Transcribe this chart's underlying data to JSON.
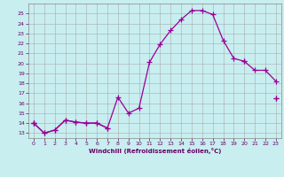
{
  "xlabel": "Windchill (Refroidissement éolien,°C)",
  "background_color": "#c8eef0",
  "grid_color": "#aaaaaa",
  "line_color": "#990099",
  "x_data": [
    0,
    1,
    2,
    3,
    4,
    5,
    6,
    7,
    8,
    9,
    10,
    11,
    12,
    13,
    14,
    15,
    16,
    17,
    18,
    19,
    20,
    21,
    22,
    23
  ],
  "curve_main": [
    14.0,
    13.0,
    13.3,
    14.3,
    14.1,
    14.0,
    14.0,
    13.5,
    16.6,
    15.0,
    15.5,
    20.1,
    21.9,
    23.3,
    24.4,
    25.3,
    25.3,
    24.9,
    22.3,
    20.5,
    20.2,
    null,
    null,
    null
  ],
  "curve_upper": [
    null,
    null,
    null,
    null,
    null,
    null,
    null,
    null,
    null,
    null,
    null,
    null,
    null,
    null,
    null,
    null,
    null,
    null,
    null,
    null,
    20.2,
    19.3,
    19.3,
    18.2
  ],
  "curve_mid": [
    14.0,
    13.0,
    13.3,
    14.3,
    14.1,
    14.0,
    14.0,
    13.5,
    null,
    null,
    null,
    null,
    null,
    null,
    null,
    null,
    null,
    null,
    null,
    null,
    null,
    null,
    null,
    16.5
  ],
  "curve_low": [
    14.0,
    null,
    null,
    null,
    null,
    null,
    null,
    null,
    null,
    null,
    null,
    null,
    null,
    null,
    null,
    null,
    null,
    null,
    null,
    null,
    null,
    null,
    null,
    16.5
  ],
  "ylim": [
    12.5,
    26.0
  ],
  "xlim": [
    -0.5,
    23.5
  ],
  "yticks": [
    13,
    14,
    15,
    16,
    17,
    18,
    19,
    20,
    21,
    22,
    23,
    24,
    25
  ],
  "xticks": [
    0,
    1,
    2,
    3,
    4,
    5,
    6,
    7,
    8,
    9,
    10,
    11,
    12,
    13,
    14,
    15,
    16,
    17,
    18,
    19,
    20,
    21,
    22,
    23
  ]
}
